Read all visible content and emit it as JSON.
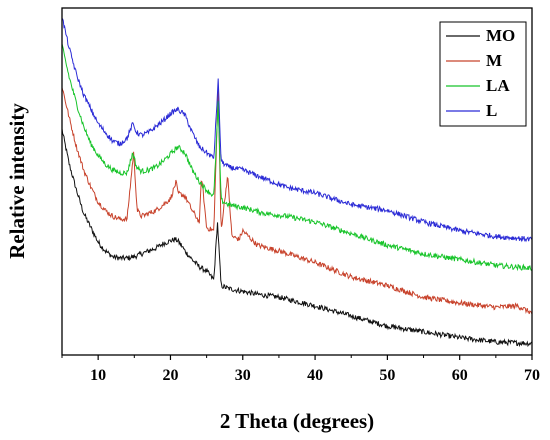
{
  "chart_data": {
    "type": "line",
    "title": "",
    "xlabel": "2 Theta (degrees)",
    "ylabel": "Relative intensity",
    "xlim": [
      5,
      70
    ],
    "xticks": [
      10,
      20,
      30,
      40,
      50,
      60,
      70
    ],
    "yticks": "none",
    "grid": false,
    "legend_position": "top-right",
    "series": [
      {
        "name": "MO",
        "color": "#111111",
        "x": [
          5,
          6,
          7,
          8,
          9,
          10,
          11,
          12,
          13,
          14,
          15,
          16,
          17,
          18,
          19,
          20,
          20.6,
          21,
          21.5,
          22,
          23,
          24,
          25,
          26,
          26.5,
          27,
          28,
          30,
          32,
          35,
          40,
          45,
          50,
          55,
          60,
          65,
          70
        ],
        "y": [
          0.78,
          0.66,
          0.57,
          0.49,
          0.44,
          0.39,
          0.36,
          0.34,
          0.335,
          0.335,
          0.34,
          0.35,
          0.36,
          0.37,
          0.385,
          0.395,
          0.4,
          0.395,
          0.38,
          0.36,
          0.33,
          0.305,
          0.29,
          0.26,
          0.46,
          0.24,
          0.23,
          0.22,
          0.21,
          0.2,
          0.17,
          0.135,
          0.1,
          0.08,
          0.06,
          0.045,
          0.04
        ]
      },
      {
        "name": "M",
        "color": "#c8432c",
        "x": [
          5,
          6,
          7,
          8,
          9,
          10,
          11,
          12,
          13,
          14,
          14.9,
          15.4,
          16,
          17,
          18,
          19,
          20,
          20.8,
          21,
          22,
          23,
          24,
          24.3,
          25,
          26,
          26.6,
          27,
          27.9,
          28.5,
          29.5,
          30,
          32,
          35,
          40,
          45,
          50,
          55,
          60,
          65,
          68,
          70
        ],
        "y": [
          0.93,
          0.82,
          0.72,
          0.64,
          0.58,
          0.53,
          0.5,
          0.48,
          0.47,
          0.47,
          0.7,
          0.5,
          0.48,
          0.49,
          0.5,
          0.52,
          0.54,
          0.6,
          0.56,
          0.55,
          0.5,
          0.46,
          0.62,
          0.44,
          0.43,
          0.92,
          0.43,
          0.62,
          0.41,
          0.4,
          0.43,
          0.38,
          0.36,
          0.32,
          0.27,
          0.24,
          0.2,
          0.18,
          0.165,
          0.17,
          0.145
        ]
      },
      {
        "name": "LA",
        "color": "#18c42a",
        "x": [
          5,
          6,
          7,
          8,
          9,
          10,
          11,
          12,
          13,
          14,
          14.8,
          15.3,
          16,
          17,
          18,
          19,
          20,
          21,
          22,
          23,
          24,
          25,
          26,
          26.6,
          27,
          28,
          30,
          33,
          36,
          40,
          45,
          50,
          55,
          60,
          65,
          70
        ],
        "y": [
          1.07,
          0.96,
          0.87,
          0.79,
          0.73,
          0.69,
          0.66,
          0.64,
          0.63,
          0.63,
          0.7,
          0.65,
          0.635,
          0.64,
          0.65,
          0.67,
          0.695,
          0.72,
          0.7,
          0.64,
          0.6,
          0.57,
          0.55,
          0.87,
          0.535,
          0.52,
          0.51,
          0.49,
          0.48,
          0.46,
          0.42,
          0.38,
          0.35,
          0.33,
          0.31,
          0.3
        ]
      },
      {
        "name": "L",
        "color": "#2b2bd6",
        "x": [
          5,
          6,
          7,
          8,
          9,
          10,
          11,
          12,
          13,
          14,
          14.8,
          15.3,
          16,
          17,
          18,
          19,
          20,
          21,
          22,
          23,
          24,
          25,
          26,
          26.6,
          27,
          28,
          30,
          33,
          36,
          40,
          45,
          50,
          55,
          60,
          65,
          70
        ],
        "y": [
          1.17,
          1.06,
          0.97,
          0.9,
          0.85,
          0.8,
          0.77,
          0.74,
          0.73,
          0.75,
          0.8,
          0.77,
          0.76,
          0.77,
          0.79,
          0.81,
          0.835,
          0.85,
          0.83,
          0.77,
          0.72,
          0.7,
          0.68,
          0.95,
          0.67,
          0.65,
          0.64,
          0.61,
          0.58,
          0.56,
          0.52,
          0.5,
          0.46,
          0.43,
          0.41,
          0.4
        ]
      }
    ]
  }
}
